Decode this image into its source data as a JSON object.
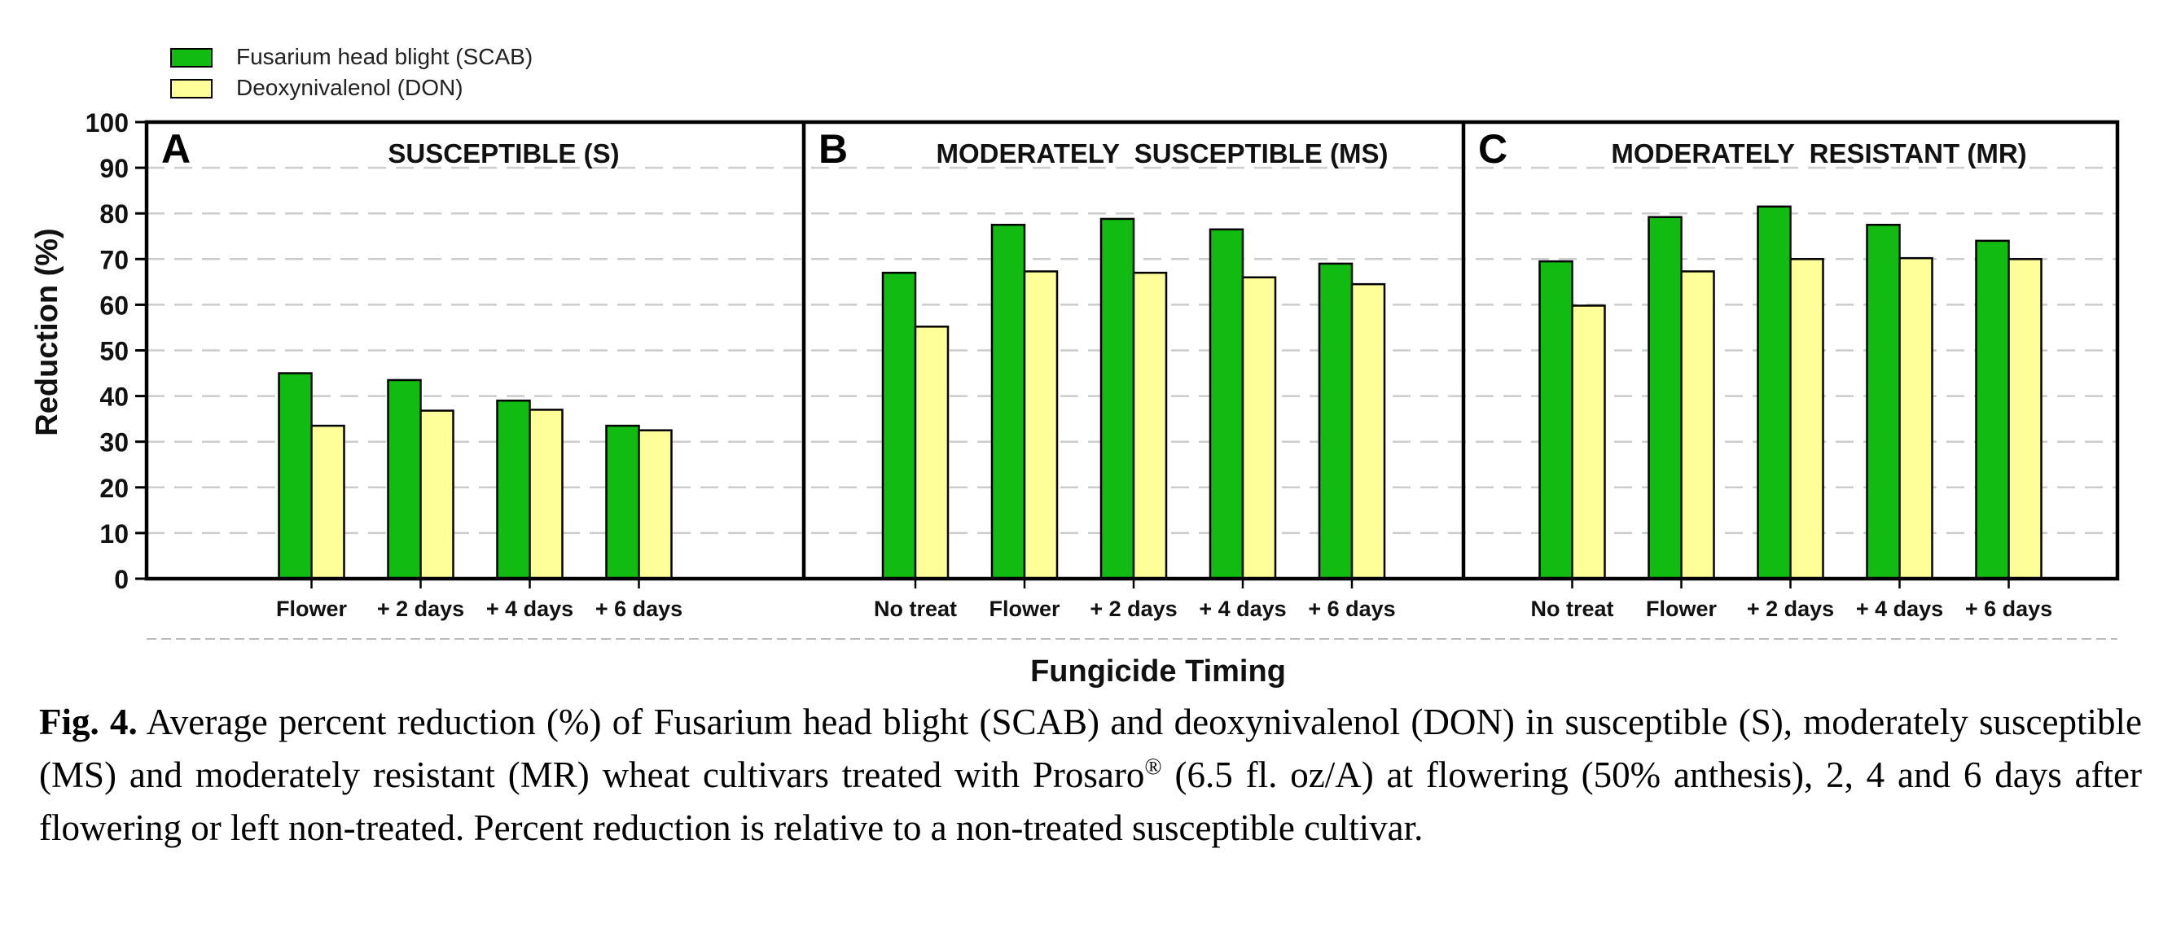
{
  "chart_data": {
    "type": "bar",
    "xlabel": "Fungicide Timing",
    "ylabel": "Reduction (%)",
    "ylim": [
      0,
      100
    ],
    "yticks": [
      "0",
      "10",
      "20",
      "30",
      "40",
      "50",
      "60",
      "70",
      "80",
      "90",
      "100"
    ],
    "grid": true,
    "legend_position": "top-left",
    "series": [
      {
        "name": "Fusarium head blight (SCAB)",
        "color": "#11bb11"
      },
      {
        "name": "Deoxynivalenol (DON)",
        "color": "#ffff99"
      }
    ],
    "panels": [
      {
        "letter": "A",
        "title": "SUSCEPTIBLE (S)",
        "categories": [
          "Flower",
          "+ 2 days",
          "+ 4 days",
          "+ 6 days"
        ],
        "values": [
          [
            45,
            43.5,
            39,
            33.5
          ],
          [
            33.5,
            36.8,
            37,
            32.5
          ]
        ]
      },
      {
        "letter": "B",
        "title": "MODERATELY  SUSCEPTIBLE (MS)",
        "categories": [
          "No treat",
          "Flower",
          "+ 2 days",
          "+ 4 days",
          "+ 6 days"
        ],
        "values": [
          [
            67,
            77.5,
            78.8,
            76.5,
            69
          ],
          [
            55.2,
            67.3,
            67,
            66,
            64.5
          ]
        ]
      },
      {
        "letter": "C",
        "title": "MODERATELY  RESISTANT (MR)",
        "categories": [
          "No treat",
          "Flower",
          "+ 2 days",
          "+ 4 days",
          "+ 6 days"
        ],
        "values": [
          [
            69.5,
            79.2,
            81.5,
            77.5,
            74
          ],
          [
            59.8,
            67.3,
            70,
            70.2,
            70
          ]
        ]
      }
    ]
  },
  "caption": {
    "label": "Fig. 4.",
    "text_before": " Average percent reduction (%) of Fusarium head blight (SCAB) and deoxynivalenol (DON) in susceptible (S), moderately susceptible (MS) and moderately resistant (MR) wheat cultivars treated with Prosaro",
    "registered_mark": "®",
    "text_after": " (6.5 fl. oz/A) at flowering (50% anthesis), 2, 4 and 6 days after flowering or left non-treated. Percent reduction is relative to a non-treated susceptible cultivar."
  }
}
